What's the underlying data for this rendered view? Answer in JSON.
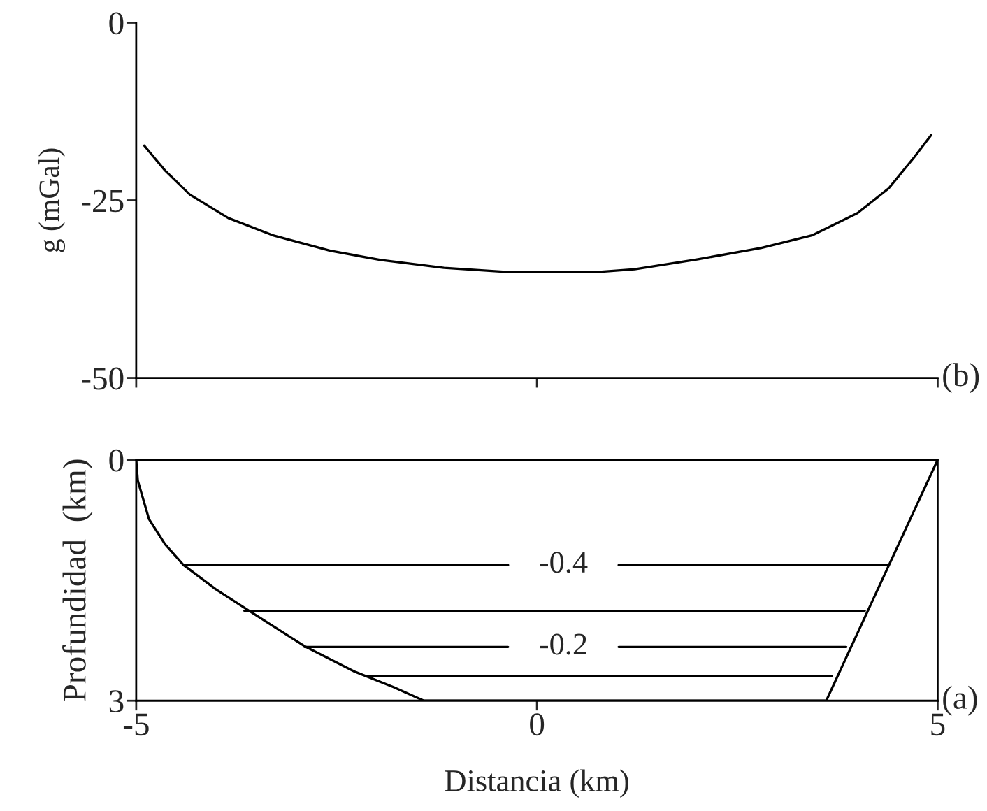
{
  "chart_data": [
    {
      "type": "line",
      "ylabel": "g (mGal)",
      "xlim": [
        -5,
        5
      ],
      "xticks": [
        -5,
        0,
        5
      ],
      "ylim": [
        -50,
        0
      ],
      "yticks": [
        0,
        -25,
        -50
      ],
      "tick_labels": "y",
      "grid": false,
      "legend": false,
      "series": [
        {
          "color": "#000000",
          "x": [
            -4.9,
            -4.64,
            -4.33,
            -3.85,
            -3.3,
            -2.58,
            -1.95,
            -1.16,
            -0.36,
            0.75,
            1.22,
            2.01,
            2.8,
            3.44,
            4.0,
            4.39,
            4.71,
            4.92
          ],
          "values": [
            -17.3,
            -20.8,
            -24.2,
            -27.5,
            -29.9,
            -32.1,
            -33.4,
            -34.5,
            -35.1,
            -35.1,
            -34.7,
            -33.3,
            -31.7,
            -29.9,
            -26.8,
            -23.3,
            -18.9,
            -15.8
          ]
        }
      ],
      "annotations": [
        "(b)"
      ]
    },
    {
      "type": "line",
      "xlabel": "Distancia (km)",
      "ylabel": "Profundidad  (km)",
      "xlim": [
        -5,
        5
      ],
      "xticks": [
        -5,
        0,
        5
      ],
      "ylim": [
        3,
        0
      ],
      "yticks": [
        0,
        3
      ],
      "grid": false,
      "legend": false,
      "series": [
        {
          "color": "#000000",
          "x": [
            -5,
            -4.98,
            -4.84,
            -4.64,
            -4.41,
            -4.01,
            -3.53,
            -2.9,
            -2.27,
            -1.79,
            -1.41,
            3.61,
            5
          ],
          "values": [
            0,
            0.26,
            0.74,
            1.05,
            1.31,
            1.61,
            1.92,
            2.32,
            2.64,
            2.83,
            3.0,
            3.0,
            0
          ]
        },
        {
          "color": "#000000",
          "x": [
            -4.41,
            -0.36,
            0.33,
            1.02,
            4.37
          ],
          "values": [
            1.31,
            1.31,
            null,
            1.31,
            1.31
          ]
        },
        {
          "color": "#000000",
          "x": [
            -3.65,
            4.09
          ],
          "values": [
            1.88,
            1.88
          ]
        },
        {
          "color": "#000000",
          "x": [
            -2.9,
            -0.36,
            0.33,
            1.02,
            3.86
          ],
          "values": [
            2.33,
            2.33,
            null,
            2.33,
            2.33
          ]
        },
        {
          "color": "#000000",
          "x": [
            -2.11,
            3.68
          ],
          "values": [
            2.69,
            2.69
          ]
        }
      ],
      "annotations": [
        "-0.4",
        "-0.2",
        "(a)"
      ]
    }
  ]
}
